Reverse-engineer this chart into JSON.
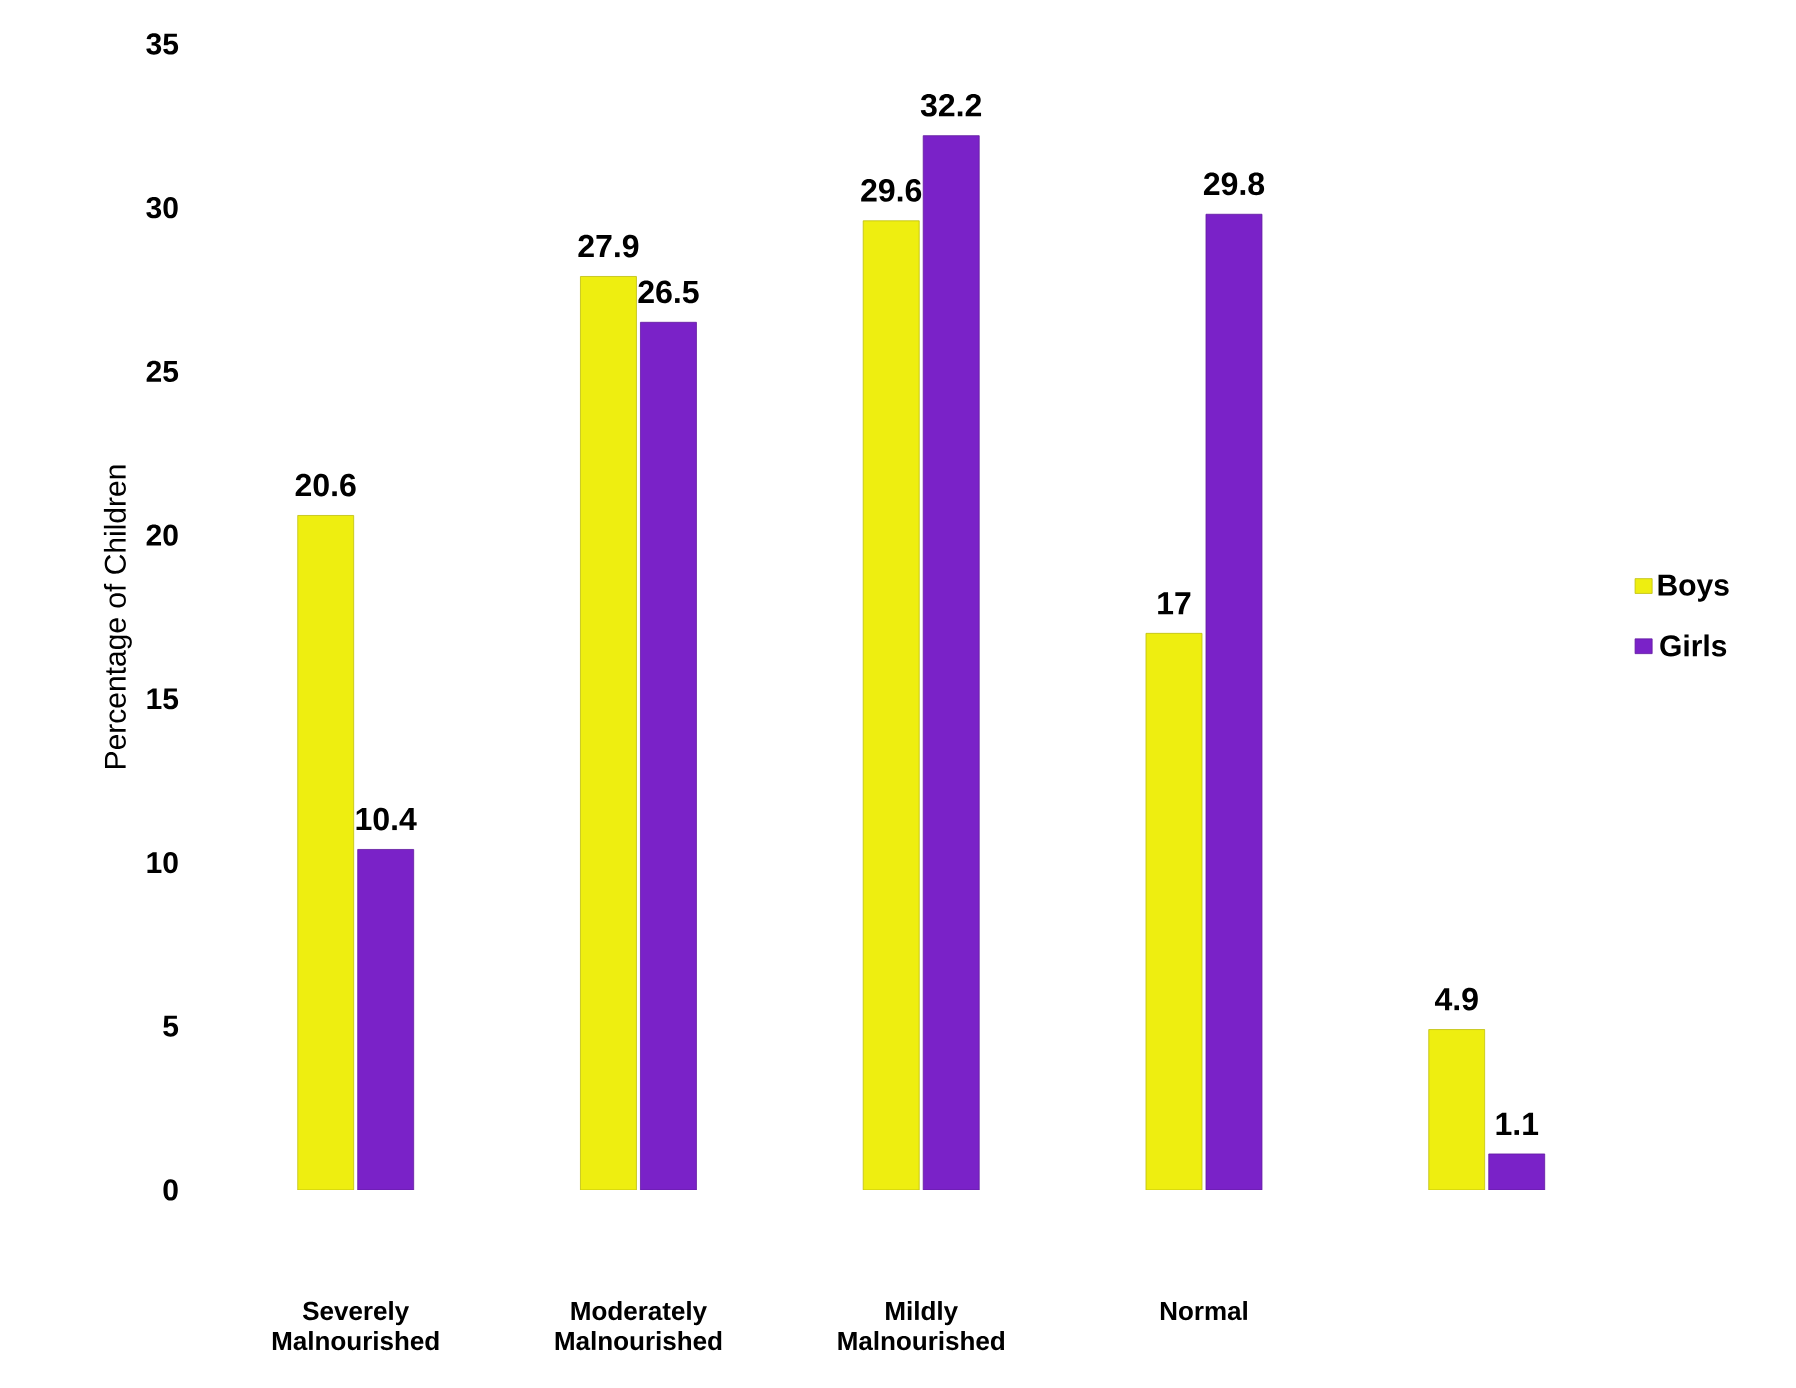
{
  "chart_data": {
    "type": "bar",
    "ylabel": "Percentage of Children",
    "categories": [
      "Severely Malnourished",
      "Moderately Malnourished",
      "Mildly Malnourished",
      "Normal",
      null
    ],
    "series": [
      {
        "name": "Boys",
        "color": "#eeee10",
        "values": [
          20.6,
          27.9,
          29.6,
          17,
          4.9
        ]
      },
      {
        "name": "Girls",
        "color": "#7a22c8",
        "values": [
          10.4,
          26.5,
          32.2,
          29.8,
          1.1
        ]
      }
    ],
    "ylim": [
      0,
      35
    ],
    "yticks": [
      0,
      5,
      10,
      15,
      20,
      25,
      30,
      35
    ],
    "data_labels": true,
    "legend": "right",
    "grid": false
  }
}
